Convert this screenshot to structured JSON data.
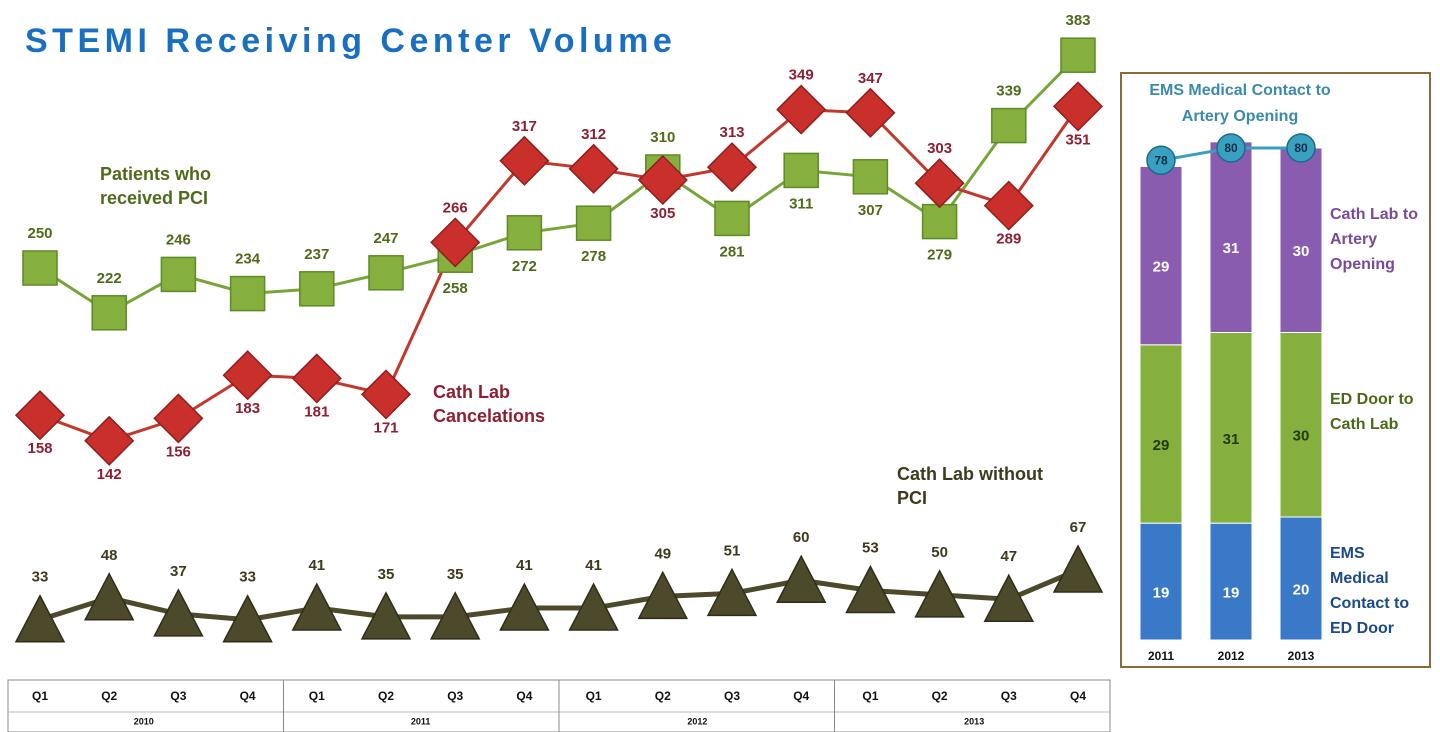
{
  "chart_data": [
    {
      "type": "line",
      "title": "STEMI Receiving Center Volume",
      "categories": [
        "Q1",
        "Q2",
        "Q3",
        "Q4",
        "Q1",
        "Q2",
        "Q3",
        "Q4",
        "Q1",
        "Q2",
        "Q3",
        "Q4",
        "Q1",
        "Q2",
        "Q3",
        "Q4"
      ],
      "years": [
        "2010",
        "2011",
        "2012",
        "2013"
      ],
      "ylim": [
        100,
        400
      ],
      "y2lim": [
        0,
        80
      ],
      "series": [
        {
          "name": "Patients who received PCI",
          "color": "#86b03e",
          "marker": "square",
          "values": [
            250,
            222,
            246,
            234,
            237,
            247,
            258,
            272,
            278,
            310,
            281,
            311,
            307,
            279,
            339,
            383
          ]
        },
        {
          "name": "Cath Lab Cancelations",
          "color": "#c9302c",
          "marker": "diamond",
          "values": [
            158,
            142,
            156,
            183,
            181,
            171,
            266,
            317,
            312,
            305,
            313,
            349,
            347,
            303,
            289,
            351
          ]
        },
        {
          "name": "Cath Lab without PCI",
          "color": "#4d4a2c",
          "marker": "triangle",
          "axis": "y2",
          "values": [
            33,
            48,
            37,
            33,
            41,
            35,
            35,
            41,
            41,
            49,
            51,
            60,
            53,
            50,
            47,
            67
          ]
        }
      ]
    },
    {
      "type": "stacked_bar",
      "title": "EMS Medical Contact to Artery Opening",
      "categories": [
        "2011",
        "2012",
        "2013"
      ],
      "ylim": [
        0,
        80
      ],
      "series": [
        {
          "name": "EMS Medical Contact to ED Door",
          "color": "#3a78c8",
          "values": [
            19,
            19,
            20
          ]
        },
        {
          "name": "ED Door to Cath Lab",
          "color": "#86b03e",
          "values": [
            29,
            31,
            30
          ]
        },
        {
          "name": "Cath Lab to Artery Opening",
          "color": "#8a5cb0",
          "values": [
            29,
            31,
            30
          ]
        }
      ],
      "totals": {
        "color": "#3aa0c0",
        "values": [
          78,
          80,
          80
        ]
      }
    }
  ]
}
